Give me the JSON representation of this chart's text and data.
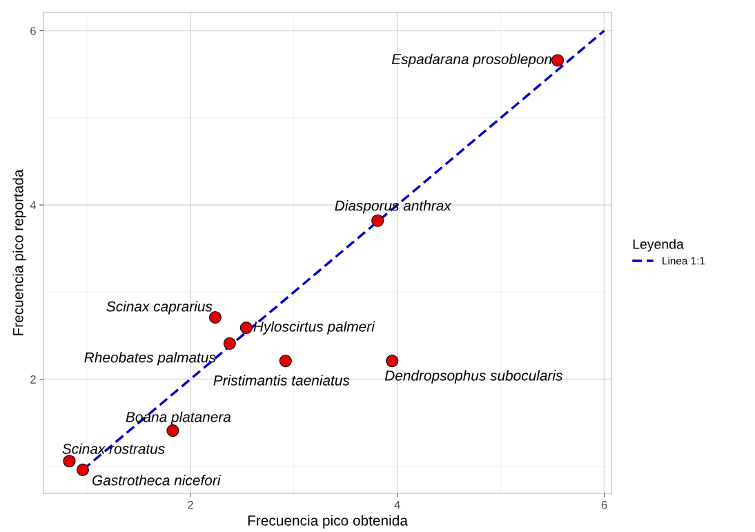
{
  "chart_data": {
    "type": "scatter",
    "xlabel": "Frecuencia pico obtenida",
    "ylabel": "Frecuencia pico reportada",
    "legend_title": "Leyenda",
    "legend": "right",
    "grid": true,
    "xlim": [
      0.58,
      6.07
    ],
    "ylim": [
      0.69,
      6.21
    ],
    "xticks": [
      2,
      4,
      6
    ],
    "yticks": [
      2,
      4,
      6
    ],
    "series": [
      {
        "marker": "circle",
        "color": "#e00000",
        "x": [
          5.55,
          3.81,
          2.24,
          2.54,
          2.38,
          2.92,
          3.95,
          1.83,
          0.83,
          0.96
        ],
        "values": [
          5.66,
          3.82,
          2.71,
          2.59,
          2.41,
          2.21,
          2.21,
          1.41,
          1.06,
          0.96
        ]
      },
      {
        "type": "line",
        "name": "Linea 1:1",
        "color": "#0000cd",
        "line_style": "dashed",
        "x": [
          0.96,
          6
        ],
        "values": [
          0.96,
          6
        ]
      }
    ],
    "annotations": [
      {
        "text": "Espadarana prosoblepon",
        "x": 5.55,
        "y": 5.66
      },
      {
        "text": "Diasporus anthrax",
        "x": 3.81,
        "y": 3.82
      },
      {
        "text": "Scinax caprarius",
        "x": 2.24,
        "y": 2.71
      },
      {
        "text": "Hyloscirtus palmeri",
        "x": 2.54,
        "y": 2.59
      },
      {
        "text": "Rheobates palmatus",
        "x": 2.38,
        "y": 2.41
      },
      {
        "text": "Pristimantis taeniatus",
        "x": 2.92,
        "y": 2.21
      },
      {
        "text": "Dendropsophus subocularis",
        "x": 3.95,
        "y": 2.21
      },
      {
        "text": "Boana platanera",
        "x": 1.83,
        "y": 1.41
      },
      {
        "text": "Scinax rostratus",
        "x": 0.83,
        "y": 1.06
      },
      {
        "text": "Gastrotheca nicefori",
        "x": 0.96,
        "y": 0.96
      }
    ]
  }
}
